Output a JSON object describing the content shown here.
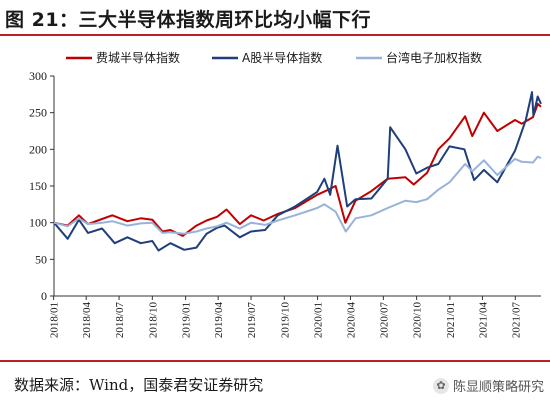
{
  "header": {
    "title": "图 21：三大半导体指数周环比均小幅下行"
  },
  "footer": {
    "source": "数据来源：Wind，国泰君安证券研究",
    "watermark": "陈显顺策略研究"
  },
  "chart_data": {
    "type": "line",
    "xlabel": "",
    "ylabel": "",
    "ylim": [
      0,
      300
    ],
    "yticks": [
      0,
      50,
      100,
      150,
      200,
      250,
      300
    ],
    "xlim": [
      "2018-01-02",
      "2021-09-10"
    ],
    "xticks": [
      "2018/01",
      "2018/04",
      "2018/07",
      "2018/10",
      "2019/01",
      "2019/04",
      "2019/07",
      "2019/10",
      "2020/01",
      "2020/04",
      "2020/07",
      "2020/10",
      "2021/01",
      "2021/04",
      "2021/07"
    ],
    "grid": false,
    "legend": "top",
    "series": [
      {
        "name": "费城半导体指数",
        "color": "#c00000",
        "points": [
          [
            "2018-01-02",
            100
          ],
          [
            "2018-02-09",
            96
          ],
          [
            "2018-03-12",
            110
          ],
          [
            "2018-04-06",
            98
          ],
          [
            "2018-05-15",
            105
          ],
          [
            "2018-06-12",
            110
          ],
          [
            "2018-07-24",
            102
          ],
          [
            "2018-08-30",
            106
          ],
          [
            "2018-10-01",
            104
          ],
          [
            "2018-10-29",
            88
          ],
          [
            "2018-11-20",
            90
          ],
          [
            "2018-12-24",
            82
          ],
          [
            "2019-01-31",
            96
          ],
          [
            "2019-02-28",
            103
          ],
          [
            "2019-03-29",
            108
          ],
          [
            "2019-04-24",
            118
          ],
          [
            "2019-05-31",
            98
          ],
          [
            "2019-07-01",
            110
          ],
          [
            "2019-08-05",
            103
          ],
          [
            "2019-09-13",
            112
          ],
          [
            "2019-10-31",
            120
          ],
          [
            "2019-12-31",
            138
          ],
          [
            "2020-01-31",
            145
          ],
          [
            "2020-02-20",
            150
          ],
          [
            "2020-03-18",
            100
          ],
          [
            "2020-04-15",
            130
          ],
          [
            "2020-05-29",
            143
          ],
          [
            "2020-07-13",
            160
          ],
          [
            "2020-08-31",
            162
          ],
          [
            "2020-09-23",
            152
          ],
          [
            "2020-10-30",
            168
          ],
          [
            "2020-11-30",
            200
          ],
          [
            "2020-12-31",
            215
          ],
          [
            "2021-02-12",
            245
          ],
          [
            "2021-03-04",
            218
          ],
          [
            "2021-04-05",
            250
          ],
          [
            "2021-05-12",
            225
          ],
          [
            "2021-06-30",
            240
          ],
          [
            "2021-07-19",
            235
          ],
          [
            "2021-08-19",
            244
          ],
          [
            "2021-09-01",
            262
          ],
          [
            "2021-09-10",
            258
          ]
        ]
      },
      {
        "name": "A股半导体指数",
        "color": "#1f3e7a",
        "points": [
          [
            "2018-01-02",
            100
          ],
          [
            "2018-02-09",
            78
          ],
          [
            "2018-03-12",
            104
          ],
          [
            "2018-04-06",
            86
          ],
          [
            "2018-05-15",
            92
          ],
          [
            "2018-06-19",
            72
          ],
          [
            "2018-07-24",
            80
          ],
          [
            "2018-08-30",
            72
          ],
          [
            "2018-10-01",
            75
          ],
          [
            "2018-10-18",
            62
          ],
          [
            "2018-11-20",
            72
          ],
          [
            "2018-12-28",
            63
          ],
          [
            "2019-01-31",
            66
          ],
          [
            "2019-02-28",
            85
          ],
          [
            "2019-03-29",
            93
          ],
          [
            "2019-04-19",
            96
          ],
          [
            "2019-05-31",
            80
          ],
          [
            "2019-07-01",
            88
          ],
          [
            "2019-08-09",
            90
          ],
          [
            "2019-09-13",
            110
          ],
          [
            "2019-10-31",
            122
          ],
          [
            "2019-12-31",
            142
          ],
          [
            "2020-01-20",
            160
          ],
          [
            "2020-02-05",
            138
          ],
          [
            "2020-02-25",
            205
          ],
          [
            "2020-03-23",
            122
          ],
          [
            "2020-04-15",
            132
          ],
          [
            "2020-05-29",
            133
          ],
          [
            "2020-07-13",
            160
          ],
          [
            "2020-07-20",
            230
          ],
          [
            "2020-08-31",
            200
          ],
          [
            "2020-09-30",
            167
          ],
          [
            "2020-10-30",
            175
          ],
          [
            "2020-11-30",
            180
          ],
          [
            "2020-12-31",
            204
          ],
          [
            "2021-02-10",
            200
          ],
          [
            "2021-03-09",
            158
          ],
          [
            "2021-04-05",
            172
          ],
          [
            "2021-05-12",
            155
          ],
          [
            "2021-06-30",
            198
          ],
          [
            "2021-07-30",
            240
          ],
          [
            "2021-08-16",
            278
          ],
          [
            "2021-08-20",
            246
          ],
          [
            "2021-09-01",
            272
          ],
          [
            "2021-09-10",
            262
          ]
        ]
      },
      {
        "name": "台湾电子加权指数",
        "color": "#98b3d9",
        "points": [
          [
            "2018-01-02",
            100
          ],
          [
            "2018-02-09",
            95
          ],
          [
            "2018-03-12",
            106
          ],
          [
            "2018-04-06",
            98
          ],
          [
            "2018-05-15",
            100
          ],
          [
            "2018-06-12",
            102
          ],
          [
            "2018-07-24",
            96
          ],
          [
            "2018-08-30",
            99
          ],
          [
            "2018-10-01",
            100
          ],
          [
            "2018-10-29",
            86
          ],
          [
            "2018-11-20",
            87
          ],
          [
            "2018-12-28",
            85
          ],
          [
            "2019-01-31",
            88
          ],
          [
            "2019-02-28",
            92
          ],
          [
            "2019-03-29",
            95
          ],
          [
            "2019-04-24",
            100
          ],
          [
            "2019-05-31",
            92
          ],
          [
            "2019-07-01",
            100
          ],
          [
            "2019-08-09",
            97
          ],
          [
            "2019-09-13",
            103
          ],
          [
            "2019-10-31",
            110
          ],
          [
            "2019-12-31",
            120
          ],
          [
            "2020-01-20",
            125
          ],
          [
            "2020-02-20",
            115
          ],
          [
            "2020-03-19",
            88
          ],
          [
            "2020-04-15",
            106
          ],
          [
            "2020-05-29",
            110
          ],
          [
            "2020-07-13",
            120
          ],
          [
            "2020-08-31",
            130
          ],
          [
            "2020-09-30",
            128
          ],
          [
            "2020-10-30",
            132
          ],
          [
            "2020-11-30",
            145
          ],
          [
            "2020-12-31",
            155
          ],
          [
            "2021-02-12",
            180
          ],
          [
            "2021-03-04",
            170
          ],
          [
            "2021-04-05",
            185
          ],
          [
            "2021-05-12",
            165
          ],
          [
            "2021-06-30",
            187
          ],
          [
            "2021-07-19",
            183
          ],
          [
            "2021-08-19",
            182
          ],
          [
            "2021-09-01",
            190
          ],
          [
            "2021-09-10",
            188
          ]
        ]
      }
    ]
  }
}
